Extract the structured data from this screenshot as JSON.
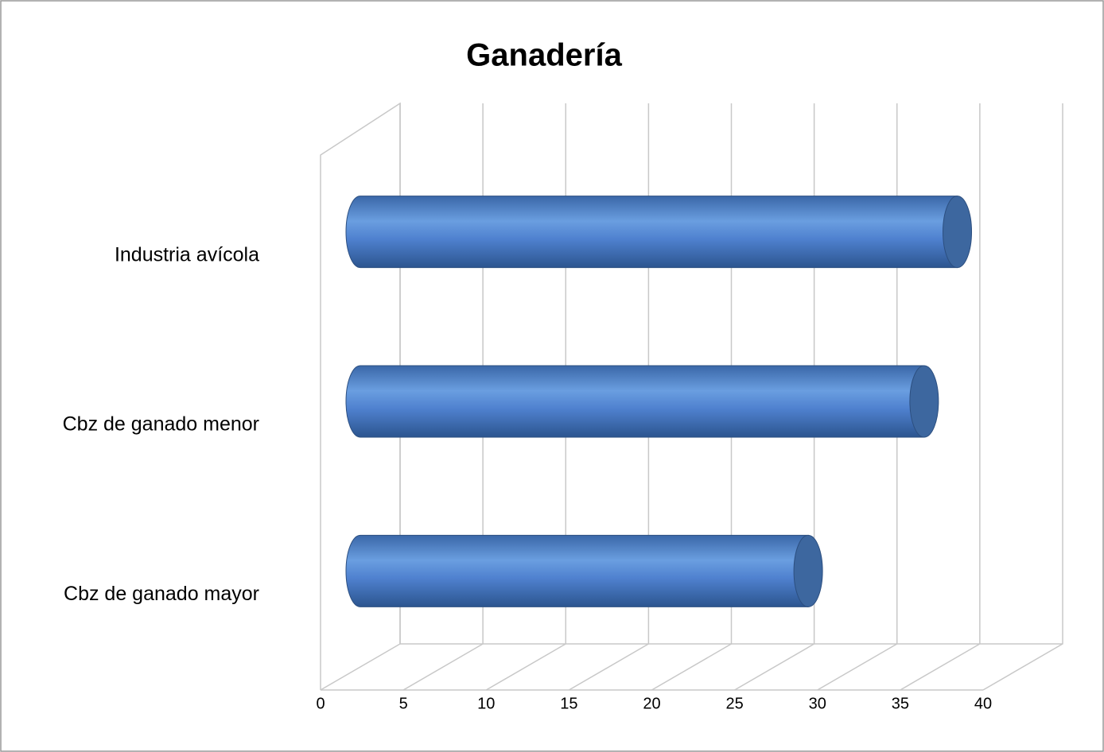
{
  "chart_data": {
    "type": "bar",
    "orientation": "horizontal",
    "title": "Ganadería",
    "categories": [
      "Industria avícola",
      "Cbz de ganado menor",
      "Cbz de ganado mayor"
    ],
    "values": [
      37,
      35,
      28
    ],
    "color": "#4f81bd",
    "xlim": [
      0,
      40
    ],
    "xticks": [
      0,
      5,
      10,
      15,
      20,
      25,
      30,
      35,
      40
    ],
    "grid": true
  }
}
